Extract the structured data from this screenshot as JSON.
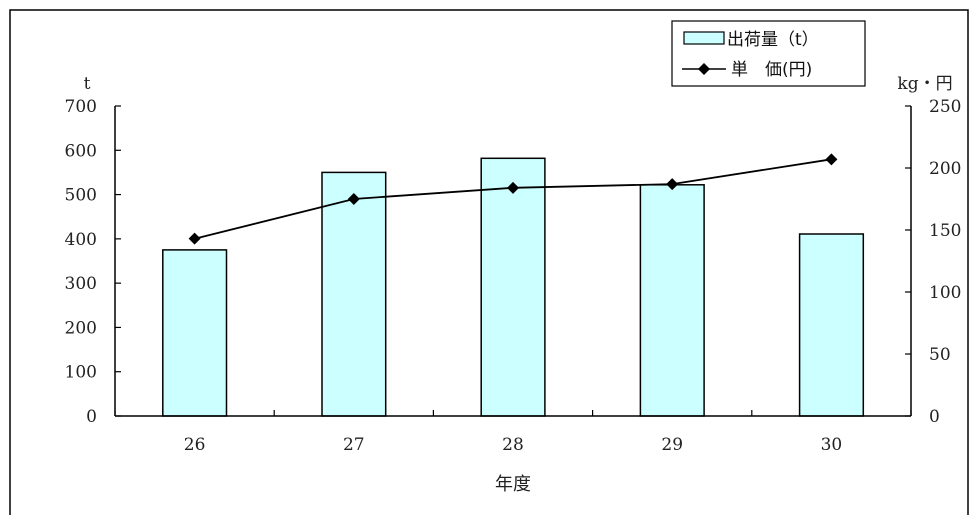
{
  "chart_data": {
    "type": "bar",
    "categories": [
      "26",
      "27",
      "28",
      "29",
      "30"
    ],
    "series": [
      {
        "name": "出荷量（t）",
        "type": "bar",
        "axis": "left",
        "values": [
          375,
          550,
          582,
          522,
          411
        ]
      },
      {
        "name": "単　価(円)",
        "type": "line",
        "axis": "right",
        "values": [
          143,
          175,
          184,
          187,
          207
        ]
      }
    ],
    "xlabel": "年度",
    "ylabel": "t",
    "y2label": "kg・円",
    "ylim": [
      0,
      700
    ],
    "y2lim": [
      0,
      250
    ],
    "yticks": [
      "0",
      "100",
      "200",
      "300",
      "400",
      "500",
      "600",
      "700"
    ],
    "y2ticks": [
      "0",
      "50",
      "100",
      "150",
      "200",
      "250"
    ],
    "legend": "top-right",
    "grid": false,
    "colors": {
      "bar_fill": "#ccffff",
      "bar_stroke": "#000000",
      "line": "#000000"
    }
  }
}
